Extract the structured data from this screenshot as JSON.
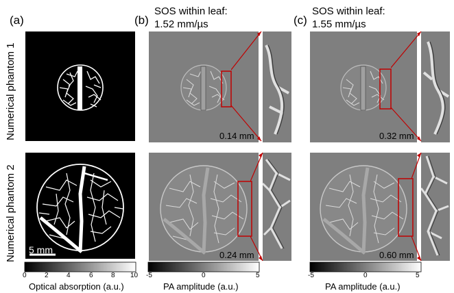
{
  "panels": {
    "a_label": "(a)",
    "b_label": "(b)",
    "c_label": "(c)"
  },
  "sos": {
    "b_title_line1": "SOS within leaf:",
    "b_title_line2": "1.52 mm/µs",
    "c_title_line1": "SOS within leaf:",
    "c_title_line2": "1.55 mm/µs"
  },
  "rows": {
    "row1_label": "Numerical phantom 1",
    "row2_label": "Numerical phantom 2"
  },
  "annotations": {
    "b_row1_scale": "0.14 mm",
    "c_row1_scale": "0.32 mm",
    "b_row2_scale": "0.24 mm",
    "c_row2_scale": "0.60 mm",
    "scalebar": "5 mm"
  },
  "colorbars": {
    "a": {
      "label": "Optical absorption (a.u.)",
      "ticks": [
        "0",
        "2",
        "4",
        "6",
        "8",
        "10"
      ]
    },
    "b": {
      "label": "PA amplitude (a.u.)",
      "ticks": [
        "-5",
        "0",
        "5"
      ]
    },
    "c": {
      "label": "PA amplitude (a.u.)",
      "ticks": [
        "-5",
        "0",
        "5"
      ]
    }
  },
  "colors": {
    "zoom_box": "#c00000",
    "recon_bg": "#7f7f7f",
    "phantom_bg": "#000000"
  }
}
